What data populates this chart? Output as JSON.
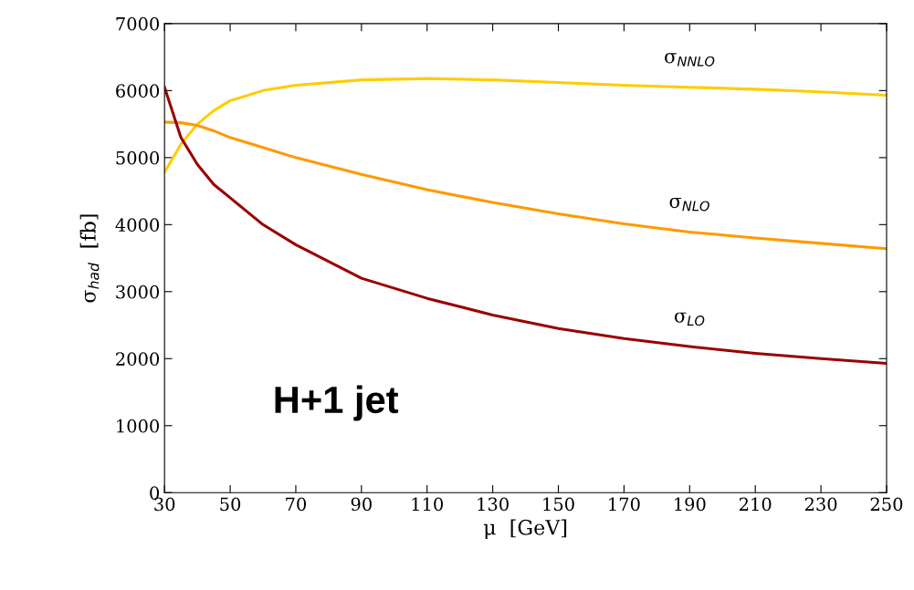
{
  "chart_data": {
    "type": "line",
    "xlabel": "μ  [GeV]",
    "ylabel": "σ$_{had}$  [fb]",
    "annotations": [
      "H+1 jet"
    ],
    "x": [
      30,
      35,
      40,
      45,
      50,
      60,
      70,
      90,
      110,
      130,
      150,
      170,
      190,
      210,
      230,
      250
    ],
    "series": [
      {
        "name": "σ$_{NNLO}$",
        "color": "#ffcc00",
        "values": [
          4780,
          5200,
          5500,
          5700,
          5850,
          6000,
          6080,
          6160,
          6180,
          6160,
          6120,
          6080,
          6050,
          6020,
          5980,
          5930
        ]
      },
      {
        "name": "σ$_{NLO}$",
        "color": "#ff9900",
        "values": [
          5530,
          5520,
          5480,
          5400,
          5300,
          5150,
          5000,
          4750,
          4520,
          4330,
          4160,
          4010,
          3890,
          3800,
          3720,
          3640
        ]
      },
      {
        "name": "σ$_{LO}$",
        "color": "#990000",
        "values": [
          6050,
          5300,
          4900,
          4600,
          4400,
          4000,
          3700,
          3200,
          2900,
          2650,
          2450,
          2300,
          2180,
          2080,
          2000,
          1930
        ]
      }
    ],
    "xlim": [
      30,
      250
    ],
    "xticks": [
      30,
      50,
      70,
      90,
      110,
      130,
      150,
      170,
      190,
      210,
      230,
      250
    ],
    "ylim": [
      0,
      7000
    ],
    "yticks": [
      0,
      1000,
      2000,
      3000,
      4000,
      5000,
      6000,
      7000
    ],
    "grid": false,
    "legend": false,
    "marker": "none",
    "line_style": "solid"
  }
}
